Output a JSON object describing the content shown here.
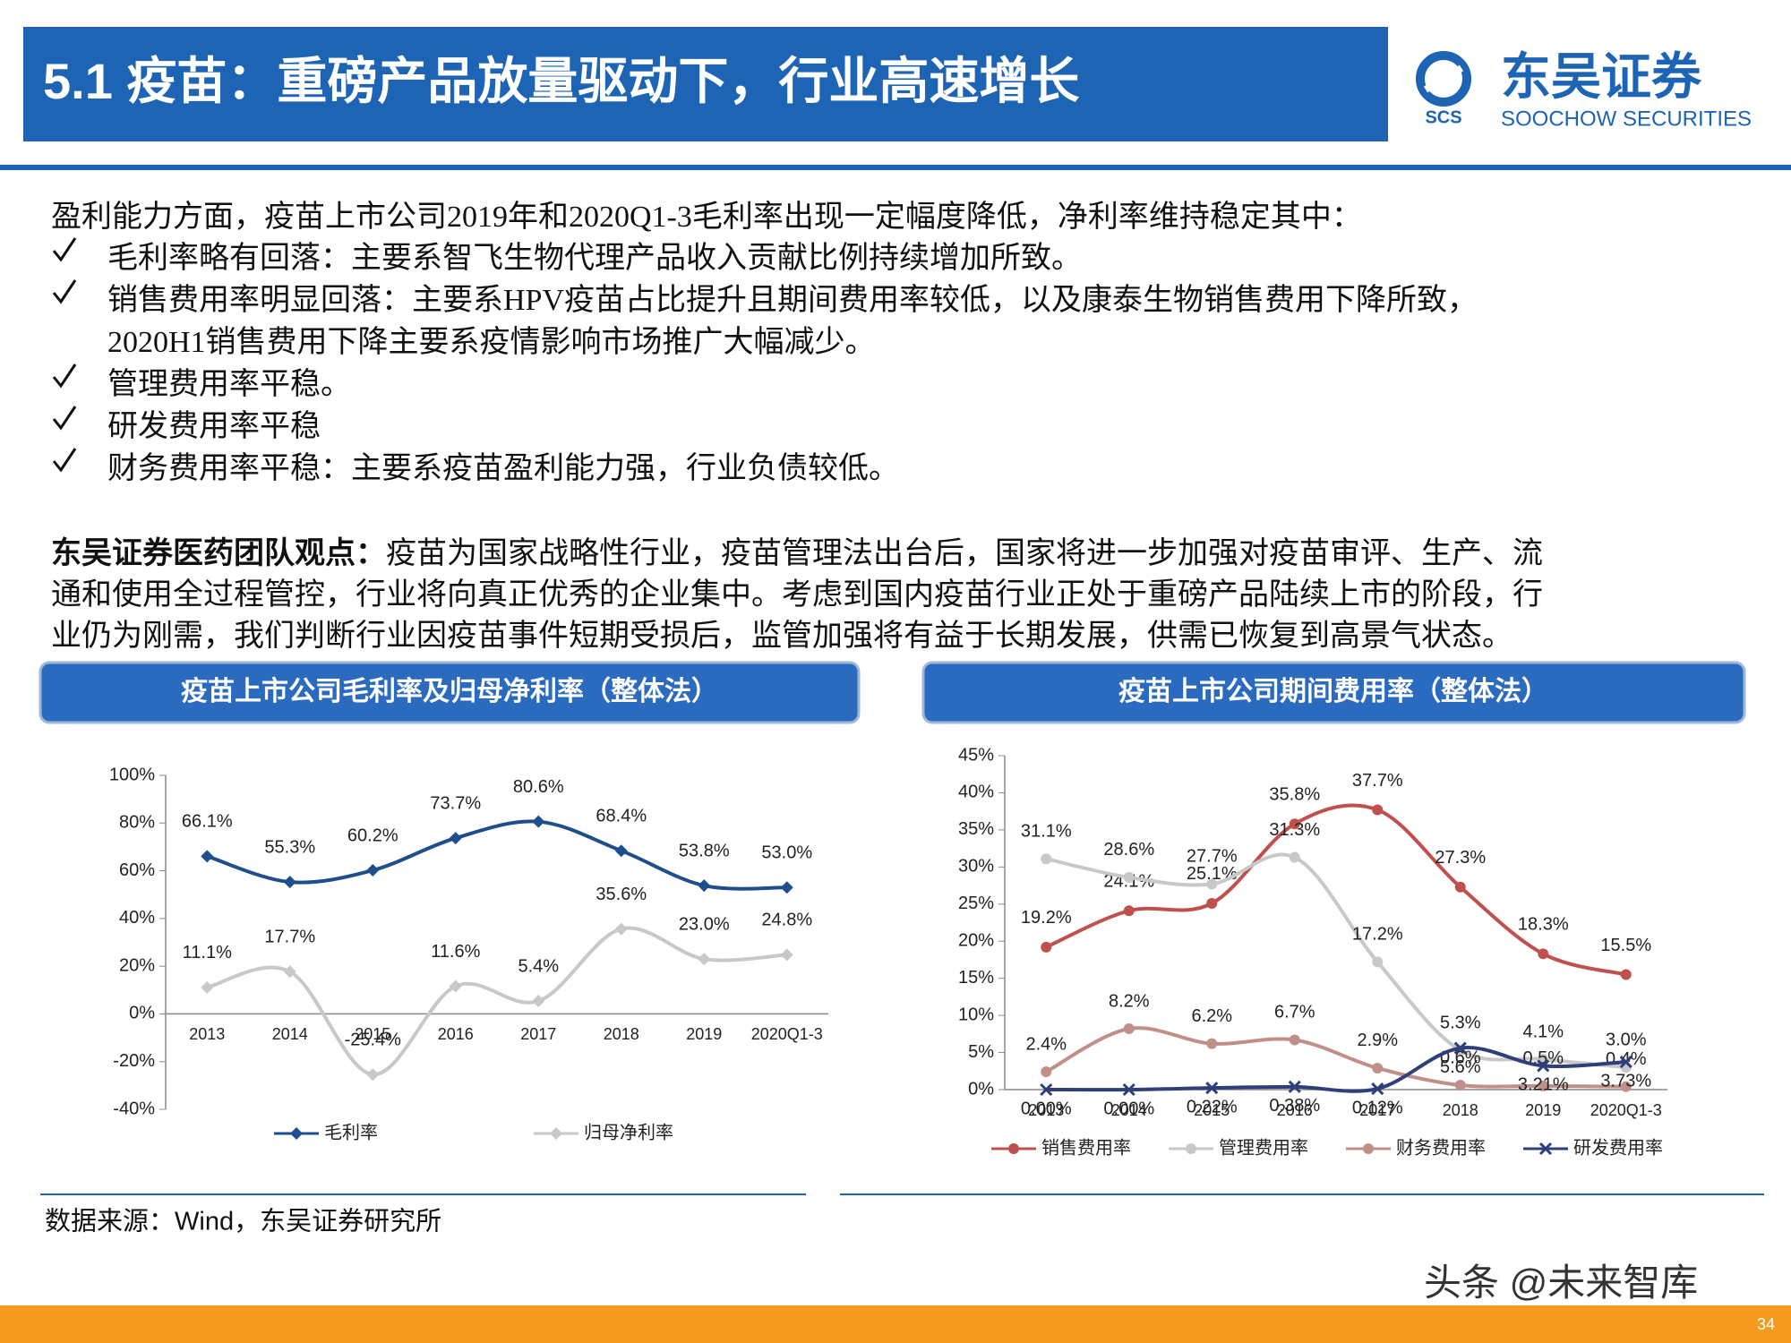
{
  "header": {
    "title": "5.1 疫苗：重磅产品放量驱动下，行业高速增长",
    "logo_cn": "东吴证券",
    "logo_abbr": "SCS",
    "logo_en": "SOOCHOW SECURITIES"
  },
  "body": {
    "intro": "盈利能力方面，疫苗上市公司2019年和2020Q1-3毛利率出现一定幅度降低，净利率维持稳定其中：",
    "bullets": [
      {
        "lines": [
          "毛利率略有回落：主要系智飞生物代理产品收入贡献比例持续增加所致。"
        ]
      },
      {
        "lines": [
          "销售费用率明显回落：主要系HPV疫苗占比提升且期间费用率较低，以及康泰生物销售费用下降所致，",
          "2020H1销售费用下降主要系疫情影响市场推广大幅减少。"
        ]
      },
      {
        "lines": [
          "管理费用率平稳。"
        ]
      },
      {
        "lines": [
          "研发费用率平稳"
        ]
      },
      {
        "lines": [
          "财务费用率平稳：主要系疫苗盈利能力强，行业负债较低。"
        ]
      }
    ],
    "view_lead": "东吴证券医药团队观点：",
    "view_lines": [
      "疫苗为国家战略性行业，疫苗管理法出台后，国家将进一步加强对疫苗审评、生产、流",
      "通和使用全过程管控，行业将向真正优秀的企业集中。考虑到国内疫苗行业正处于重磅产品陆续上市的阶段，行",
      "业仍为刚需，我们判断行业因疫苗事件短期受损后，监管加强将有益于长期发展，供需已恢复到高景气状态。"
    ]
  },
  "chart_data": [
    {
      "type": "line",
      "title": "疫苗上市公司毛利率及归母净利率（整体法）",
      "categories": [
        "2013",
        "2014",
        "2015",
        "2016",
        "2017",
        "2018",
        "2019",
        "2020Q1-3"
      ],
      "series": [
        {
          "name": "毛利率",
          "color": "#1f4e8c",
          "marker": "diamond",
          "values": [
            66.1,
            55.3,
            60.2,
            73.7,
            80.6,
            68.4,
            53.8,
            53.0
          ],
          "value_labels": [
            "66.1%",
            "55.3%",
            "60.2%",
            "73.7%",
            "80.6%",
            "68.4%",
            "53.8%",
            "53.0%"
          ]
        },
        {
          "name": "归母净利率",
          "color": "#c8c8c8",
          "marker": "diamond",
          "values": [
            11.1,
            17.7,
            -25.4,
            11.6,
            5.4,
            35.6,
            23.0,
            24.8
          ],
          "value_labels": [
            "11.1%",
            "17.7%",
            "-25.4%",
            "11.6%",
            "5.4%",
            "35.6%",
            "23.0%",
            "24.8%"
          ]
        }
      ],
      "ylim": [
        -40,
        100
      ],
      "yticks": [
        {
          "value": -40,
          "label": "-40%"
        },
        {
          "value": -20,
          "label": "-20%"
        },
        {
          "value": 0,
          "label": "0%"
        },
        {
          "value": 20,
          "label": "20%"
        },
        {
          "value": 40,
          "label": "40%"
        },
        {
          "value": 60,
          "label": "60%"
        },
        {
          "value": 80,
          "label": "80%"
        },
        {
          "value": 100,
          "label": "100%"
        }
      ],
      "grid": false,
      "legend": "bottom"
    },
    {
      "type": "line",
      "title": "疫苗上市公司期间费用率（整体法）",
      "categories": [
        "2013",
        "2014",
        "2015",
        "2016",
        "2017",
        "2018",
        "2019",
        "2020Q1-3"
      ],
      "series": [
        {
          "name": "销售费用率",
          "color": "#c0504d",
          "marker": "circle",
          "values": [
            19.2,
            24.1,
            25.1,
            35.8,
            37.7,
            27.3,
            18.3,
            15.5
          ],
          "value_labels": [
            "19.2%",
            "24.1%",
            "25.1%",
            "35.8%",
            "37.7%",
            "27.3%",
            "18.3%",
            "15.5%"
          ]
        },
        {
          "name": "管理费用率",
          "color": "#c8c8c8",
          "marker": "circle",
          "values": [
            31.1,
            28.6,
            27.7,
            31.3,
            17.2,
            5.3,
            4.1,
            3.0
          ],
          "value_labels": [
            "31.1%",
            "28.6%",
            "27.7%",
            "31.3%",
            "17.2%",
            "5.3%",
            "4.1%",
            "3.0%"
          ]
        },
        {
          "name": "财务费用率",
          "color": "#c09088",
          "marker": "circle",
          "values": [
            2.4,
            8.2,
            6.2,
            6.7,
            2.9,
            0.6,
            0.5,
            0.4
          ],
          "value_labels": [
            "2.4%",
            "8.2%",
            "6.2%",
            "6.7%",
            "2.9%",
            "0.6%",
            "0.5%",
            "0.4%"
          ]
        },
        {
          "name": "研发费用率",
          "color": "#2f3f7a",
          "marker": "x",
          "values": [
            0,
            0,
            0.22,
            0.38,
            0.12,
            5.6,
            3.21,
            3.73
          ],
          "value_labels": [
            "0.00%",
            "0.00%",
            "0.22%",
            "0.38%",
            "0.12%",
            "5.6%",
            "3.21%",
            "3.73%"
          ]
        }
      ],
      "ylim": [
        0,
        45
      ],
      "yticks": [
        {
          "value": 0,
          "label": "0%"
        },
        {
          "value": 5,
          "label": "5%"
        },
        {
          "value": 10,
          "label": "10%"
        },
        {
          "value": 15,
          "label": "15%"
        },
        {
          "value": 20,
          "label": "20%"
        },
        {
          "value": 25,
          "label": "25%"
        },
        {
          "value": 30,
          "label": "30%"
        },
        {
          "value": 35,
          "label": "35%"
        },
        {
          "value": 40,
          "label": "40%"
        },
        {
          "value": 45,
          "label": "45%"
        }
      ],
      "grid": false,
      "legend": "bottom"
    }
  ],
  "source": "数据来源：Wind，东吴证券研究所",
  "watermark": "头条 @未来智库",
  "page_number": "34"
}
